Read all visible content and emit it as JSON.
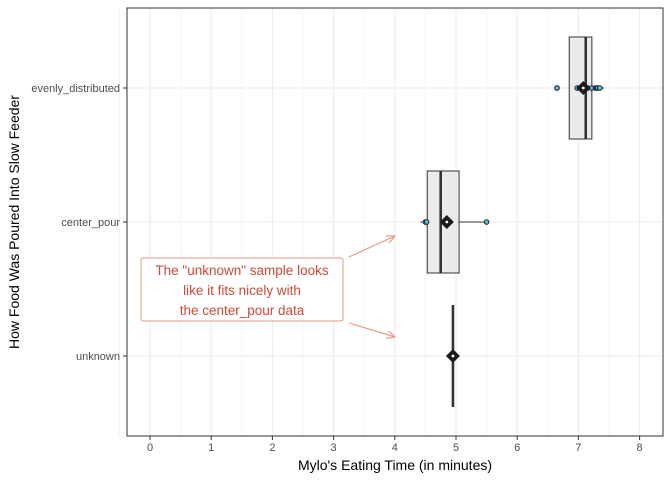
{
  "chart_data": {
    "type": "boxplot",
    "orientation": "horizontal",
    "xlabel": "Mylo's Eating Time (in minutes)",
    "ylabel": "How Food Was Poured Into Slow Feeder",
    "xlim": [
      -0.4,
      8.4
    ],
    "x_ticks": [
      0,
      1,
      2,
      3,
      4,
      5,
      6,
      7,
      8
    ],
    "categories": [
      "evenly_distributed",
      "center_pour",
      "unknown"
    ],
    "boxes": [
      {
        "category": "evenly_distributed",
        "q1": 6.85,
        "median": 7.12,
        "q3": 7.22,
        "whisker_low": 6.85,
        "whisker_high": 7.42,
        "mean": 7.08,
        "points": [
          6.65,
          6.65,
          6.98,
          7.02,
          7.08,
          7.15,
          7.22,
          7.28,
          7.3,
          7.32,
          7.35
        ]
      },
      {
        "category": "center_pour",
        "q1": 4.53,
        "median": 4.75,
        "q3": 5.05,
        "whisker_low": 4.42,
        "whisker_high": 5.48,
        "mean": 4.85,
        "points": [
          4.5,
          4.52,
          4.82,
          4.9,
          5.5
        ]
      },
      {
        "category": "unknown",
        "q1": 4.95,
        "median": 4.95,
        "q3": 4.95,
        "whisker_low": 4.95,
        "whisker_high": 4.95,
        "mean": 4.95,
        "points": [
          4.95
        ]
      }
    ],
    "annotation": {
      "lines": [
        "The \"unknown\" sample looks",
        "like it fits nicely with",
        "the center_pour data"
      ],
      "color": "#cd4a36",
      "arrow_color": "#e8937f"
    },
    "colors": {
      "box_fill": "#ebebeb",
      "box_stroke": "#333333",
      "grid": "#ebebeb",
      "panel_border": "#333333",
      "point_fill": "#5fb6d9",
      "mean_marker": "#1a1a1a"
    },
    "grid": true,
    "legend": "none"
  }
}
